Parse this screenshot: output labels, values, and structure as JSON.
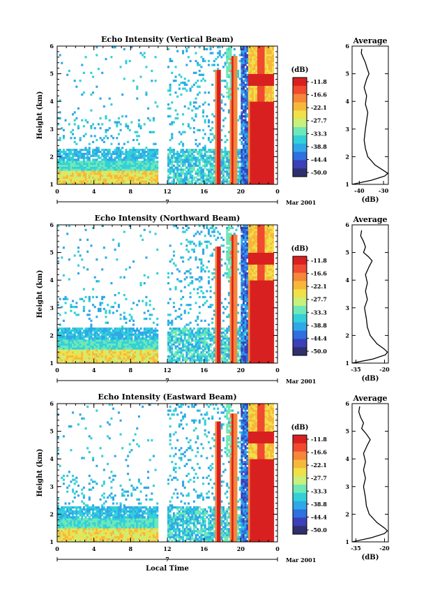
{
  "chart_data": [
    {
      "type": "heatmap",
      "title": "Echo Intensity (Vertical Beam)",
      "ylabel": "Height (km)",
      "xlabel": "",
      "ylim": [
        1,
        6
      ],
      "xlim": [
        0,
        24
      ],
      "x_ticks": [
        "0",
        "4",
        "8",
        "12",
        "16",
        "20",
        "0"
      ],
      "y_ticks": [
        "1",
        "2",
        "3",
        "4",
        "5",
        "6"
      ],
      "date_marker": "7",
      "date_label": "Mar 2001",
      "colorbar": {
        "unit": "(dB)",
        "labels": [
          "-11.8",
          "-16.6",
          "-22.1",
          "-27.7",
          "-33.3",
          "-38.8",
          "-44.4",
          "-50.0"
        ]
      },
      "average": {
        "title": "Average",
        "xlabel": "(dB)",
        "x_ticks": [
          "-40",
          "-30"
        ],
        "xlim": [
          -43,
          -28
        ],
        "ylim": [
          1,
          6
        ],
        "y_ticks": [
          "1",
          "2",
          "3",
          "4",
          "5",
          "6"
        ],
        "profile": [
          [
            1.0,
            -43
          ],
          [
            1.15,
            -35
          ],
          [
            1.3,
            -29.5
          ],
          [
            1.4,
            -28.2
          ],
          [
            1.5,
            -30
          ],
          [
            1.7,
            -33.5
          ],
          [
            2.0,
            -36.5
          ],
          [
            2.3,
            -37.5
          ],
          [
            2.6,
            -38
          ],
          [
            3.0,
            -37.5
          ],
          [
            3.3,
            -37
          ],
          [
            3.6,
            -36.5
          ],
          [
            3.9,
            -37.5
          ],
          [
            4.2,
            -37
          ],
          [
            4.5,
            -38
          ],
          [
            4.8,
            -37
          ],
          [
            5.0,
            -36
          ],
          [
            5.2,
            -36.8
          ],
          [
            5.4,
            -37.5
          ],
          [
            5.6,
            -38.5
          ],
          [
            5.75,
            -39.2
          ],
          [
            5.9,
            -39
          ]
        ]
      },
      "features": [
        {
          "label": "low layer",
          "x": [
            0,
            10
          ],
          "y": [
            1.3,
            2.3
          ]
        },
        {
          "label": "spike",
          "x": [
            17.5
          ],
          "y": [
            1.2,
            5.3
          ]
        },
        {
          "label": "spike",
          "x": [
            19.0
          ],
          "y": [
            1.2,
            5.8
          ]
        },
        {
          "label": "band",
          "x": [
            20.5,
            23.5
          ],
          "y": [
            1.2,
            6.0
          ]
        }
      ]
    },
    {
      "type": "heatmap",
      "title": "Echo Intensity (Northward Beam)",
      "ylabel": "Height (km)",
      "xlabel": "",
      "ylim": [
        1,
        6
      ],
      "xlim": [
        0,
        24
      ],
      "x_ticks": [
        "0",
        "4",
        "8",
        "12",
        "16",
        "20",
        "0"
      ],
      "y_ticks": [
        "1",
        "2",
        "3",
        "4",
        "5",
        "6"
      ],
      "date_marker": "7",
      "date_label": "Mar 2001",
      "colorbar": {
        "unit": "(dB)",
        "labels": [
          "-11.8",
          "-16.6",
          "-22.1",
          "-27.7",
          "-33.3",
          "-38.8",
          "-44.4",
          "-50.0"
        ]
      },
      "average": {
        "title": "Average",
        "xlabel": "(dB)",
        "x_ticks": [
          "-35",
          "-20"
        ],
        "xlim": [
          -37,
          -18
        ],
        "ylim": [
          1,
          6
        ],
        "y_ticks": [
          "1",
          "2",
          "3",
          "4",
          "5",
          "6"
        ],
        "profile": [
          [
            1.0,
            -37
          ],
          [
            1.15,
            -26
          ],
          [
            1.3,
            -19.5
          ],
          [
            1.4,
            -18.5
          ],
          [
            1.5,
            -20
          ],
          [
            1.7,
            -24
          ],
          [
            2.0,
            -27.5
          ],
          [
            2.3,
            -29
          ],
          [
            2.6,
            -29.5
          ],
          [
            3.0,
            -30.5
          ],
          [
            3.3,
            -29
          ],
          [
            3.6,
            -30
          ],
          [
            3.9,
            -29
          ],
          [
            4.2,
            -30
          ],
          [
            4.5,
            -28
          ],
          [
            4.7,
            -26.5
          ],
          [
            4.85,
            -28.5
          ],
          [
            5.0,
            -31
          ],
          [
            5.2,
            -30
          ],
          [
            5.4,
            -31
          ],
          [
            5.6,
            -32.5
          ],
          [
            5.8,
            -32
          ]
        ]
      },
      "features": [
        {
          "label": "low layer",
          "x": [
            0,
            10
          ],
          "y": [
            1.3,
            2.3
          ]
        },
        {
          "label": "spike",
          "x": [
            17.5
          ],
          "y": [
            1.2,
            5.3
          ]
        },
        {
          "label": "spike",
          "x": [
            19.0
          ],
          "y": [
            1.2,
            5.8
          ]
        },
        {
          "label": "band",
          "x": [
            20.5,
            23.5
          ],
          "y": [
            1.2,
            6.0
          ]
        }
      ]
    },
    {
      "type": "heatmap",
      "title": "Echo Intensity (Eastward Beam)",
      "ylabel": "Height (km)",
      "xlabel": "Local Time",
      "ylim": [
        1,
        6
      ],
      "xlim": [
        0,
        24
      ],
      "x_ticks": [
        "0",
        "4",
        "8",
        "12",
        "16",
        "20",
        "0"
      ],
      "y_ticks": [
        "1",
        "2",
        "3",
        "4",
        "5",
        "6"
      ],
      "date_marker": "7",
      "date_label": "Mar 2001",
      "colorbar": {
        "unit": "(dB)",
        "labels": [
          "-11.8",
          "-16.6",
          "-22.1",
          "-27.7",
          "-33.3",
          "-38.8",
          "-44.4",
          "-50.0"
        ]
      },
      "average": {
        "title": "Average",
        "xlabel": "(dB)",
        "x_ticks": [
          "-35",
          "-20"
        ],
        "xlim": [
          -37,
          -18
        ],
        "ylim": [
          1,
          6
        ],
        "y_ticks": [
          "1",
          "2",
          "3",
          "4",
          "5",
          "6"
        ],
        "profile": [
          [
            1.0,
            -37
          ],
          [
            1.15,
            -27
          ],
          [
            1.3,
            -20
          ],
          [
            1.4,
            -18.5
          ],
          [
            1.5,
            -20
          ],
          [
            1.7,
            -24
          ],
          [
            2.0,
            -28
          ],
          [
            2.3,
            -29.5
          ],
          [
            2.6,
            -30
          ],
          [
            3.0,
            -31
          ],
          [
            3.3,
            -30
          ],
          [
            3.6,
            -31
          ],
          [
            3.9,
            -30
          ],
          [
            4.2,
            -31
          ],
          [
            4.5,
            -29
          ],
          [
            4.7,
            -27.5
          ],
          [
            4.9,
            -29.5
          ],
          [
            5.1,
            -32
          ],
          [
            5.3,
            -31
          ],
          [
            5.5,
            -32.5
          ],
          [
            5.7,
            -33.5
          ],
          [
            5.9,
            -33
          ]
        ]
      },
      "features": [
        {
          "label": "low layer",
          "x": [
            0,
            10
          ],
          "y": [
            1.3,
            2.3
          ]
        },
        {
          "label": "spike",
          "x": [
            17.5
          ],
          "y": [
            1.2,
            5.3
          ]
        },
        {
          "label": "spike",
          "x": [
            19.0
          ],
          "y": [
            1.2,
            5.8
          ]
        },
        {
          "label": "band",
          "x": [
            20.5,
            23.5
          ],
          "y": [
            1.2,
            6.0
          ]
        }
      ]
    }
  ],
  "palette": [
    "#2f2f6e",
    "#3b3fb8",
    "#2f6fe0",
    "#2fa8e8",
    "#33d0d8",
    "#6fe8b8",
    "#c8f07a",
    "#f0e04a",
    "#f7b83a",
    "#f5863a",
    "#f04a30",
    "#d92020"
  ]
}
